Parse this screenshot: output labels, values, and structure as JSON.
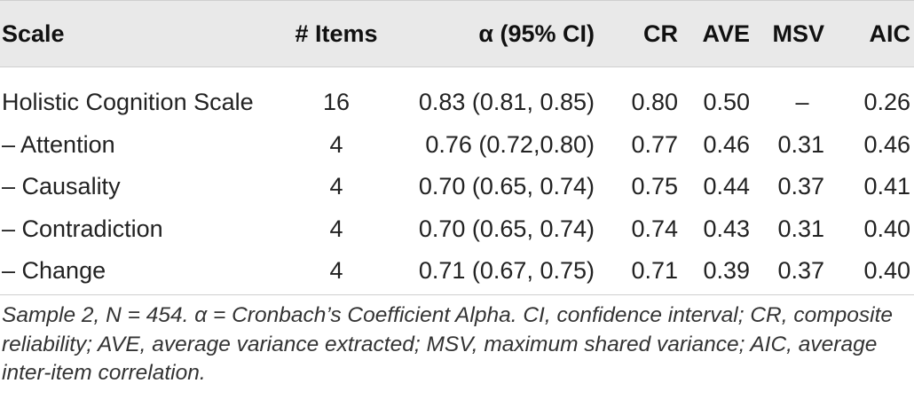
{
  "table": {
    "headers": {
      "scale": "Scale",
      "items": "# Items",
      "alpha": "α (95% CI)",
      "cr": "CR",
      "ave": "AVE",
      "msv": "MSV",
      "aic": "AIC"
    },
    "rows": [
      {
        "scale": "Holistic Cognition Scale",
        "items": "16",
        "alpha": "0.83 (0.81, 0.85)",
        "cr": "0.80",
        "ave": "0.50",
        "msv": "–",
        "aic": "0.26"
      },
      {
        "scale": "– Attention",
        "items": "4",
        "alpha": "0.76 (0.72,0.80)",
        "cr": "0.77",
        "ave": "0.46",
        "msv": "0.31",
        "aic": "0.46"
      },
      {
        "scale": "– Causality",
        "items": "4",
        "alpha": "0.70 (0.65, 0.74)",
        "cr": "0.75",
        "ave": "0.44",
        "msv": "0.37",
        "aic": "0.41"
      },
      {
        "scale": "– Contradiction",
        "items": "4",
        "alpha": "0.70 (0.65, 0.74)",
        "cr": "0.74",
        "ave": "0.43",
        "msv": "0.31",
        "aic": "0.40"
      },
      {
        "scale": "– Change",
        "items": "4",
        "alpha": "0.71 (0.67, 0.75)",
        "cr": "0.71",
        "ave": "0.39",
        "msv": "0.37",
        "aic": "0.40"
      }
    ]
  },
  "footnote": "Sample 2, N = 454. α = Cronbach’s Coefficient Alpha. CI, confidence interval; CR, composite reliability; AVE, average variance extracted; MSV, maximum shared variance; AIC, average inter-item correlation."
}
